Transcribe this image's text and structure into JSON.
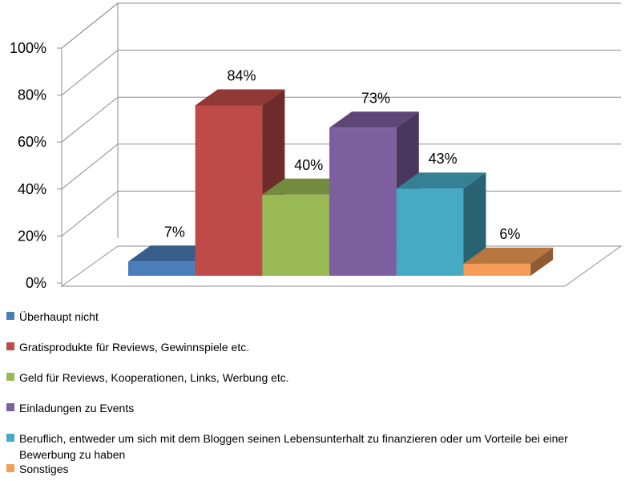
{
  "chart_data": {
    "type": "bar",
    "style": "3d-clustered",
    "title": "",
    "xlabel": "",
    "ylabel": "",
    "ylim": [
      0,
      100
    ],
    "yticks": [
      "0%",
      "20%",
      "40%",
      "60%",
      "80%",
      "100%"
    ],
    "grid": true,
    "legend_position": "bottom",
    "series": [
      {
        "name": "Überhaupt nicht",
        "value": 7,
        "label": "7%",
        "color": "#4a7ebb"
      },
      {
        "name": "Gratisprodukte für Reviews, Gewinnspiele etc.",
        "value": 84,
        "label": "84%",
        "color": "#be4b48"
      },
      {
        "name": "Geld für Reviews, Kooperationen, Links, Werbung etc.",
        "value": 40,
        "label": "40%",
        "color": "#98b954"
      },
      {
        "name": "Einladungen zu Events",
        "value": 73,
        "label": "73%",
        "color": "#7d5fa0"
      },
      {
        "name": "Beruflich, entweder um sich mit dem Bloggen seinen Lebensunterhalt zu finanzieren oder um Vorteile bei einer Bewerbung zu haben",
        "value": 43,
        "label": "43%",
        "color": "#46aac5",
        "legend_lines": [
          "Beruflich, entweder um sich mit dem Bloggen seinen Lebensunterhalt zu finanzieren oder um Vorteile bei einer",
          "Bewerbung zu haben"
        ]
      },
      {
        "name": "Sonstiges",
        "value": 6,
        "label": "6%",
        "color": "#f59d56"
      }
    ]
  }
}
